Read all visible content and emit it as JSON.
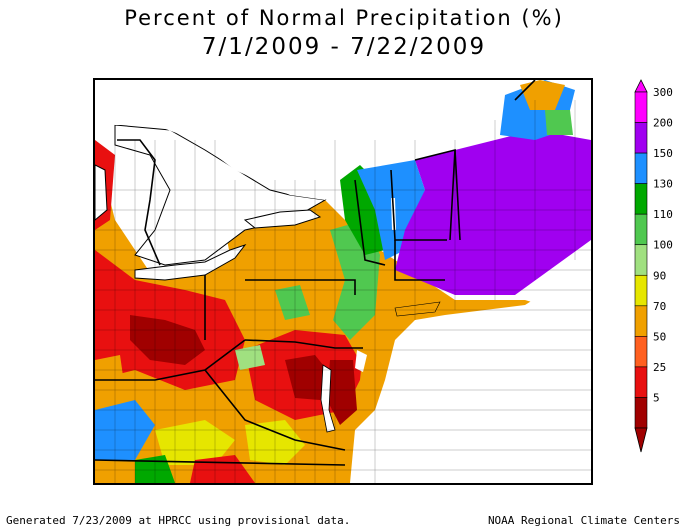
{
  "title": {
    "line1": "Percent of Normal Precipitation (%)",
    "line2": "7/1/2009 - 7/22/2009"
  },
  "legend": {
    "classes": [
      {
        "label": "300",
        "color": "#ff00ff"
      },
      {
        "label": "200",
        "color": "#a000f0"
      },
      {
        "label": "150",
        "color": "#1e90ff"
      },
      {
        "label": "130",
        "color": "#00a800"
      },
      {
        "label": "110",
        "color": "#50c850"
      },
      {
        "label": "100",
        "color": "#a0e080"
      },
      {
        "label": "90",
        "color": "#e6e600"
      },
      {
        "label": "70",
        "color": "#f0a000"
      },
      {
        "label": "50",
        "color": "#ff6020"
      },
      {
        "label": "25",
        "color": "#e81010"
      },
      {
        "label": "5",
        "color": "#a00000"
      }
    ]
  },
  "footer": {
    "left": "Generated 7/23/2009 at HPRCC using provisional data.",
    "right": "NOAA Regional Climate Centers"
  },
  "colors": {
    "water": "#ffffff",
    "border": "#000000"
  }
}
